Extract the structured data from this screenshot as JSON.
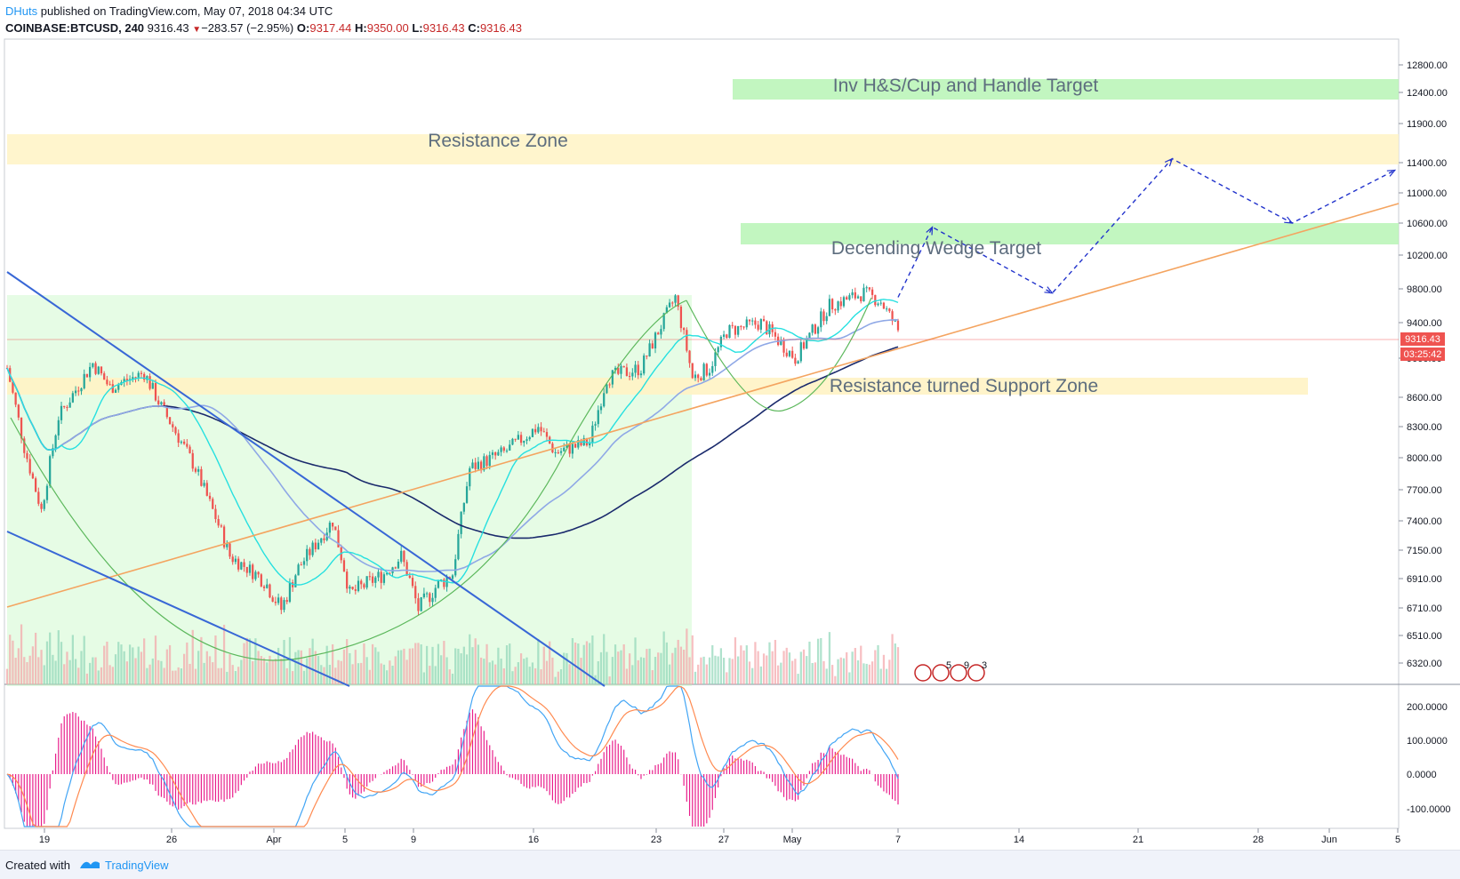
{
  "header": {
    "author": "DHuts",
    "published": " published on TradingView.com, May 07, 2018 04:34 UTC",
    "symbol": "COINBASE:BTCUSD, 240",
    "last": "9316.43",
    "change_arrow": "▼",
    "change": "−283.57 (−2.95%)",
    "o_label": "O:",
    "o_value": "9317.44",
    "h_label": "H:",
    "h_value": "9350.00",
    "l_label": "L:",
    "l_value": "9316.43",
    "c_label": "C:",
    "c_value": "9316.43"
  },
  "footer": {
    "created_with": "Created with",
    "brand": "TradingView"
  },
  "colors": {
    "up": "#26a69a",
    "down": "#ef5350",
    "green_zone": "#b7f5b5",
    "yellow_zone": "#fff3c4",
    "ma_fast": "#26e0e0",
    "ma_mid": "#8fa8e6",
    "ma_slow": "#1a2a6c",
    "wedge": "#3867d6",
    "trend": "#f4a460",
    "macd_hist": "#e91e8c",
    "macd_line": "#42a5f5",
    "signal_line": "#ff8a50"
  },
  "chart_data": {
    "type": "candlestick",
    "title": "",
    "price_now": "9316.43",
    "countdown": "03:25:42",
    "y_ticks": [
      "12800.00",
      "12400.00",
      "11900.00",
      "11400.00",
      "11000.00",
      "10600.00",
      "10200.00",
      "9800.00",
      "9400.00",
      "9000.00",
      "8600.00",
      "8300.00",
      "8000.00",
      "7700.00",
      "7400.00",
      "7150.00",
      "6910.00",
      "6710.00",
      "6510.00",
      "6320.00"
    ],
    "macd_ticks": [
      "200.0000",
      "100.0000",
      "0.0000",
      "-100.0000"
    ],
    "x_ticks": [
      "19",
      "26",
      "Apr",
      "5",
      "9",
      "16",
      "23",
      "27",
      "May",
      "7",
      "14",
      "21",
      "28",
      "Jun",
      "5"
    ],
    "annotations": [
      {
        "text": "Inv H&S/Cup and Handle Target",
        "kind": "target-zone"
      },
      {
        "text": "Resistance Zone",
        "kind": "resistance-zone"
      },
      {
        "text": "Decending Wedge Target",
        "kind": "target-zone"
      },
      {
        "text": "Resistance turned Support Zone",
        "kind": "support-zone"
      }
    ],
    "price_path": [
      [
        "Mar 16",
        8900
      ],
      [
        "Mar 17",
        8100
      ],
      [
        "Mar 18",
        7500
      ],
      [
        "Mar 19",
        8400
      ],
      [
        "Mar 21",
        8950
      ],
      [
        "Mar 22",
        8700
      ],
      [
        "Mar 24",
        8850
      ],
      [
        "Mar 25",
        8500
      ],
      [
        "Mar 27",
        7900
      ],
      [
        "Mar 29",
        7100
      ],
      [
        "Mar 31",
        6900
      ],
      [
        "Apr 1",
        6700
      ],
      [
        "Apr 2",
        7000
      ],
      [
        "Apr 4",
        7400
      ],
      [
        "Apr 5",
        6800
      ],
      [
        "Apr 7",
        6950
      ],
      [
        "Apr 8",
        7100
      ],
      [
        "Apr 9",
        6700
      ],
      [
        "Apr 10",
        6850
      ],
      [
        "Apr 11",
        6950
      ],
      [
        "Apr 12",
        7900
      ],
      [
        "Apr 14",
        8050
      ],
      [
        "Apr 16",
        8300
      ],
      [
        "Apr 17",
        8050
      ],
      [
        "Apr 19",
        8150
      ],
      [
        "Apr 20",
        8800
      ],
      [
        "Apr 22",
        8900
      ],
      [
        "Apr 24",
        9700
      ],
      [
        "Apr 25",
        8800
      ],
      [
        "Apr 26",
        8900
      ],
      [
        "Apr 27",
        9300
      ],
      [
        "Apr 29",
        9400
      ],
      [
        "May 1",
        9000
      ],
      [
        "May 3",
        9600
      ],
      [
        "May 5",
        9750
      ],
      [
        "May 6",
        9650
      ],
      [
        "May 7",
        9316
      ]
    ],
    "projection_path": [
      [
        "May 7",
        9700
      ],
      [
        "May 9",
        10550
      ],
      [
        "May 16",
        9750
      ],
      [
        "May 23",
        11450
      ],
      [
        "May 30",
        10600
      ],
      [
        "Jun 5",
        11300
      ]
    ],
    "legend_icons": [
      "5",
      "9",
      "3"
    ],
    "grid": false
  }
}
